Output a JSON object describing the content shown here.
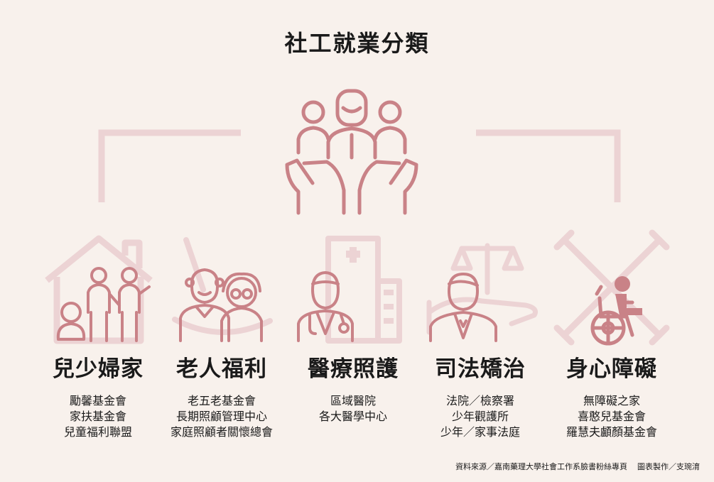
{
  "title": "社工就業分類",
  "colors": {
    "background": "#f8f1ec",
    "icon": "#c98287",
    "icon_faint": "#ecd3d4",
    "text": "#1a1a1a"
  },
  "categories": [
    {
      "name": "兒少婦家",
      "icon": "family-house-icon",
      "items": [
        "勵馨基金會",
        "家扶基金會",
        "兒童福利聯盟"
      ]
    },
    {
      "name": "老人福利",
      "icon": "elderly-couple-icon",
      "items": [
        "老五老基金會",
        "長期照顧管理中心",
        "家庭照顧者關懷總會"
      ]
    },
    {
      "name": "醫療照護",
      "icon": "doctor-hospital-icon",
      "items": [
        "區域醫院",
        "各大醫學中心"
      ]
    },
    {
      "name": "司法矯治",
      "icon": "lawyer-scales-icon",
      "items": [
        "法院／檢察署",
        "少年觀護所",
        "少年／家事法庭"
      ]
    },
    {
      "name": "身心障礙",
      "icon": "wheelchair-crutches-icon",
      "items": [
        "無障礙之家",
        "喜憨兒基金會",
        "羅慧夫顱顏基金會"
      ]
    }
  ],
  "center_icon": "people-in-hands-icon",
  "credit": {
    "source": "資料來源／嘉南藥理大學社會工作系臉書粉絲專頁",
    "maker": "圖表製作／支琬淯"
  }
}
